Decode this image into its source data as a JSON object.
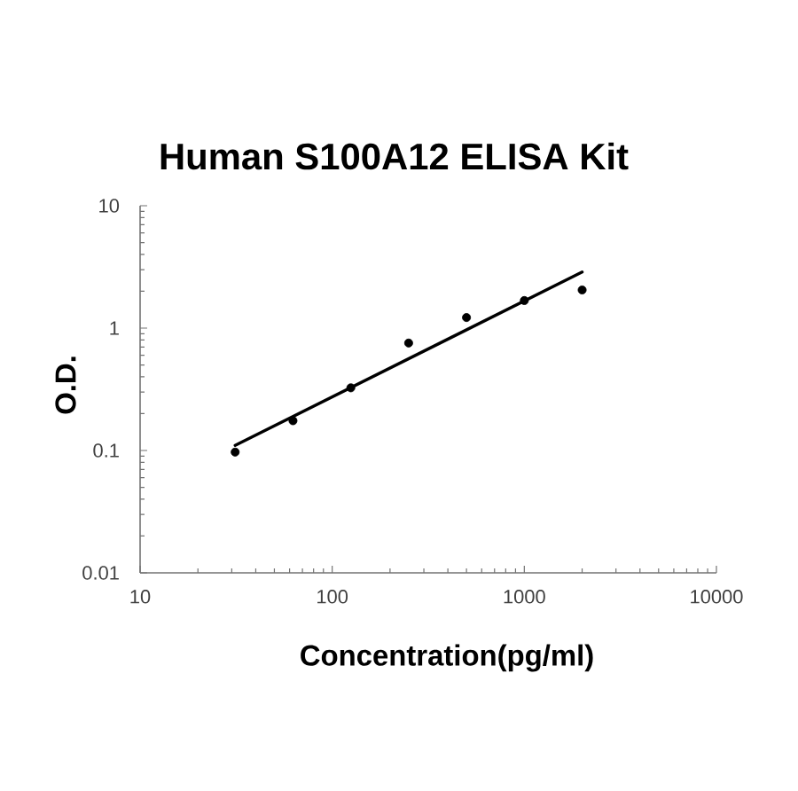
{
  "chart_data": {
    "type": "scatter",
    "title": "Human S100A12 ELISA Kit",
    "xlabel": "Concentration(pg/ml)",
    "ylabel": "O.D.",
    "log": "xy",
    "xlim": [
      10,
      10000
    ],
    "ylim": [
      0.01,
      10
    ],
    "xticks": [
      10,
      100,
      1000,
      10000
    ],
    "yticks": [
      0.01,
      0.1,
      1,
      10
    ],
    "series": [
      {
        "type": "scatter",
        "color": "#000000",
        "marker": "circle",
        "x": [
          31.25,
          62.5,
          125,
          250,
          500,
          1000,
          2000
        ],
        "values": [
          0.097,
          0.175,
          0.325,
          0.755,
          1.22,
          1.68,
          2.05
        ]
      },
      {
        "type": "line",
        "color": "#000000",
        "marker": "none",
        "line_style": "solid",
        "x": [
          31.25,
          2000
        ],
        "values": [
          0.11,
          2.87
        ]
      }
    ]
  }
}
